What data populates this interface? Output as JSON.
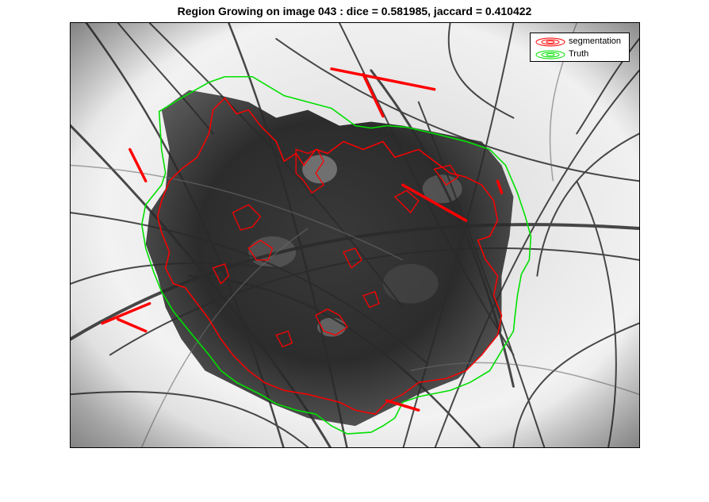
{
  "title": "Region Growing on image 043 : dice = 0.581985, jaccard = 0.410422",
  "legend": {
    "items": [
      {
        "label": "segmentation",
        "color": "#ff0000"
      },
      {
        "label": "Truth",
        "color": "#00e000"
      }
    ]
  },
  "colors": {
    "segmentation": "#ff0000",
    "truth": "#00e000"
  }
}
